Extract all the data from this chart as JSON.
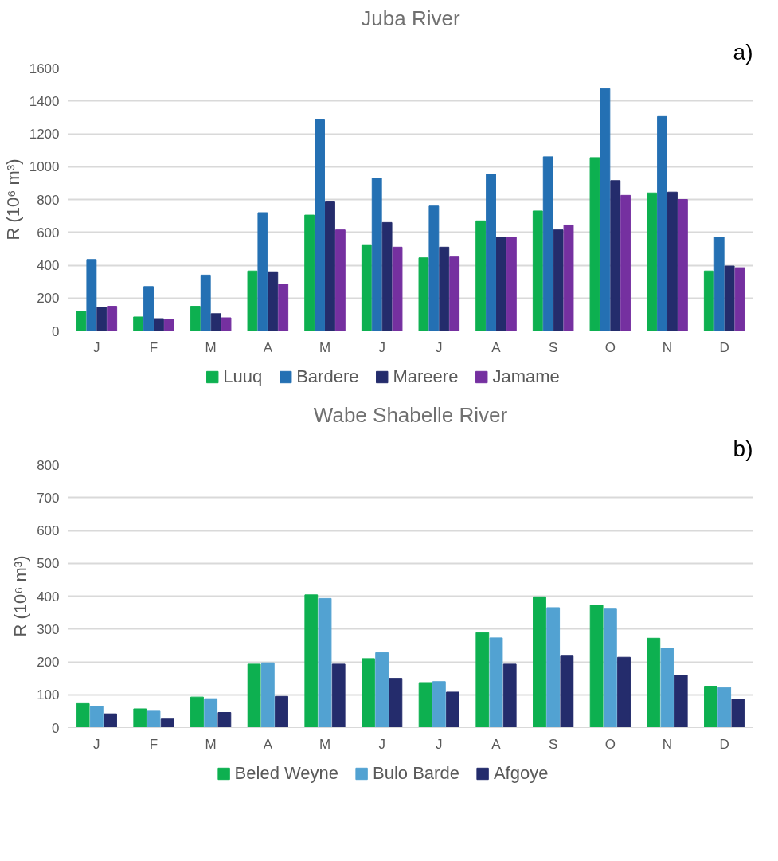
{
  "chart_data": [
    {
      "type": "bar",
      "title": "Juba River",
      "ylabel": "R (10⁶ m³)",
      "annotations": [
        "a)"
      ],
      "categories": [
        "J",
        "F",
        "M",
        "A",
        "M",
        "J",
        "J",
        "A",
        "S",
        "O",
        "N",
        "D"
      ],
      "ylim": [
        0,
        1600
      ],
      "yticks": [
        0,
        200,
        400,
        600,
        800,
        1000,
        1200,
        1400,
        1600
      ],
      "grid": "y",
      "legend": "bottom",
      "series": [
        {
          "name": "Luuq",
          "color": "#0db050",
          "values": [
            120,
            85,
            150,
            365,
            705,
            525,
            445,
            670,
            730,
            1055,
            840,
            365
          ]
        },
        {
          "name": "Bardere",
          "color": "#2470b3",
          "values": [
            435,
            270,
            340,
            720,
            1285,
            930,
            760,
            955,
            1060,
            1475,
            1305,
            570
          ]
        },
        {
          "name": "Mareere",
          "color": "#242c6c",
          "values": [
            145,
            75,
            105,
            360,
            790,
            660,
            510,
            570,
            615,
            915,
            845,
            395
          ]
        },
        {
          "name": "Jamame",
          "color": "#7530a0",
          "values": [
            150,
            70,
            80,
            285,
            615,
            510,
            450,
            570,
            645,
            825,
            800,
            385
          ]
        }
      ]
    },
    {
      "type": "bar",
      "title": "Wabe Shabelle River",
      "ylabel": "R (10⁶ m³)",
      "annotations": [
        "b)"
      ],
      "categories": [
        "J",
        "F",
        "M",
        "A",
        "M",
        "J",
        "J",
        "A",
        "S",
        "O",
        "N",
        "D"
      ],
      "ylim": [
        0,
        800
      ],
      "yticks": [
        0,
        100,
        200,
        300,
        400,
        500,
        600,
        700,
        800
      ],
      "grid": "y",
      "legend": "bottom",
      "series": [
        {
          "name": "Beled Weyne",
          "color": "#0db050",
          "values": [
            73,
            57,
            93,
            193,
            404,
            210,
            137,
            289,
            398,
            372,
            272,
            126
          ]
        },
        {
          "name": "Bulo Barde",
          "color": "#52a2d2",
          "values": [
            65,
            50,
            88,
            197,
            393,
            228,
            140,
            273,
            365,
            363,
            242,
            122
          ]
        },
        {
          "name": "Afgoye",
          "color": "#242c6c",
          "values": [
            42,
            26,
            46,
            95,
            193,
            150,
            108,
            193,
            220,
            214,
            159,
            87
          ]
        }
      ]
    }
  ]
}
